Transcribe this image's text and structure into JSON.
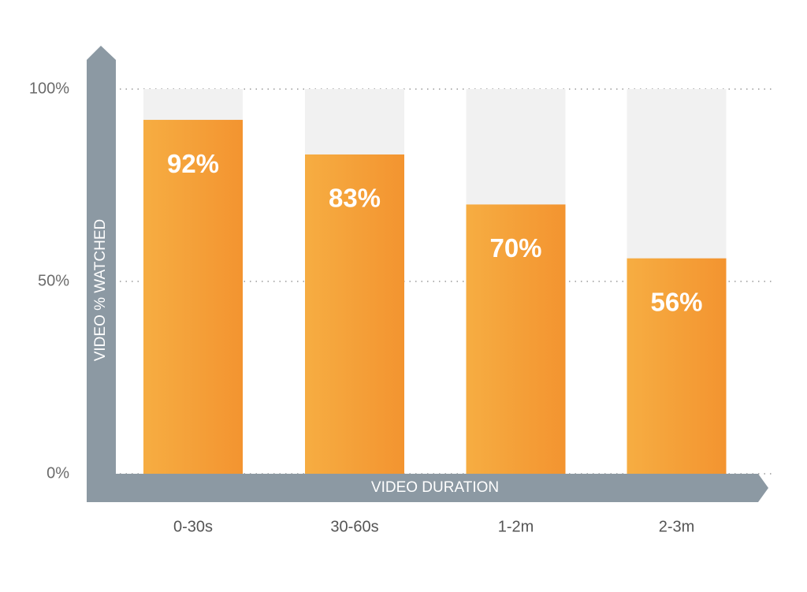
{
  "chart_data": {
    "type": "bar",
    "y_label": "VIDEO % WATCHED",
    "x_label": "VIDEO DURATION",
    "categories": [
      "0-30s",
      "30-60s",
      "1-2m",
      "2-3m"
    ],
    "values": [
      92,
      83,
      70,
      56
    ],
    "value_labels": [
      "92%",
      "83%",
      "70%",
      "56%"
    ],
    "color": "#f5a03a",
    "ylim": [
      0,
      100
    ],
    "yticks": [
      {
        "value": 0,
        "label": "0%"
      },
      {
        "value": 50,
        "label": "50%"
      },
      {
        "value": 100,
        "label": "100%"
      }
    ],
    "grid": true
  }
}
